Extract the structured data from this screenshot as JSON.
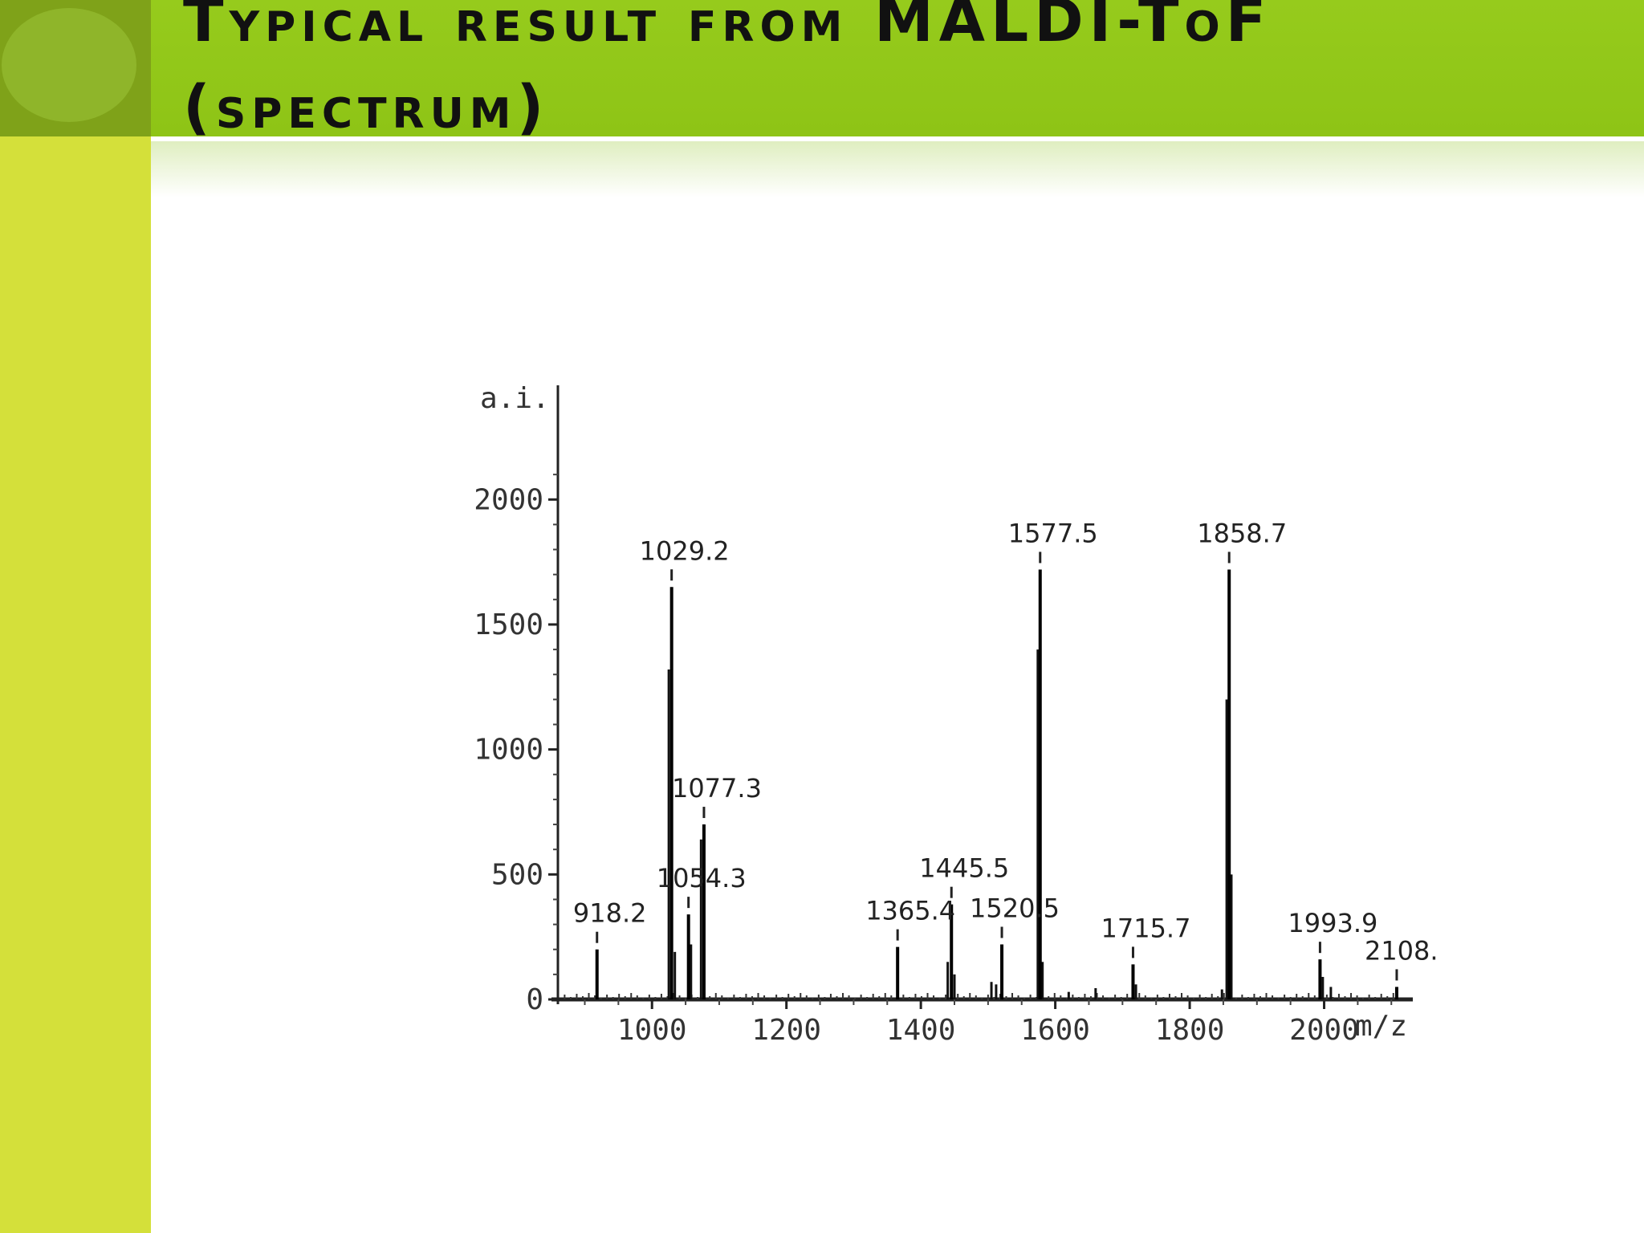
{
  "slide": {
    "title_line1": "Typical result from MALDI-ToF",
    "title_line2": "(spectrum)"
  },
  "colors": {
    "left_bar": "#d4e03a",
    "title_bar": "#92c81a",
    "corner": "#7fa219"
  },
  "chart_data": {
    "type": "bar",
    "title": "",
    "ylabel": "a.i.",
    "xlabel": "m/z",
    "xlim": [
      860,
      2120
    ],
    "ylim": [
      0,
      2200
    ],
    "xticks": [
      1000,
      1200,
      1400,
      1600,
      1800,
      2000
    ],
    "xtick_labels": [
      "1000",
      "1200",
      "1400",
      "1600",
      "1800",
      "2000"
    ],
    "yticks": [
      0,
      500,
      1000,
      1500,
      2000
    ],
    "ytick_labels": [
      "0",
      "500",
      "1000",
      "1500",
      "2000"
    ],
    "grid": false,
    "peaks": [
      {
        "label": "918.2",
        "x": 918.2,
        "y": 200
      },
      {
        "label": "1029.2",
        "x": 1029.2,
        "y": 1650
      },
      {
        "label": "1054.3",
        "x": 1054.3,
        "y": 340
      },
      {
        "label": "1077.3",
        "x": 1077.3,
        "y": 700
      },
      {
        "label": "1365.4",
        "x": 1365.4,
        "y": 210
      },
      {
        "label": "1445.5",
        "x": 1445.5,
        "y": 380
      },
      {
        "label": "1520.5",
        "x": 1520.5,
        "y": 220
      },
      {
        "label": "1577.5",
        "x": 1577.5,
        "y": 1720
      },
      {
        "label": "1715.7",
        "x": 1715.7,
        "y": 140
      },
      {
        "label": "1858.7",
        "x": 1858.7,
        "y": 1720
      },
      {
        "label": "1993.9",
        "x": 1993.9,
        "y": 160
      },
      {
        "label": "2108.0",
        "x": 2108.0,
        "y": 50
      }
    ],
    "minor_peaks": [
      {
        "x": 1025,
        "y": 1320
      },
      {
        "x": 1034,
        "y": 190
      },
      {
        "x": 1058,
        "y": 220
      },
      {
        "x": 1073,
        "y": 640
      },
      {
        "x": 1440,
        "y": 150
      },
      {
        "x": 1450,
        "y": 100
      },
      {
        "x": 1505,
        "y": 70
      },
      {
        "x": 1512,
        "y": 60
      },
      {
        "x": 1574,
        "y": 1400
      },
      {
        "x": 1581,
        "y": 150
      },
      {
        "x": 1620,
        "y": 30
      },
      {
        "x": 1660,
        "y": 45
      },
      {
        "x": 1720,
        "y": 60
      },
      {
        "x": 1855,
        "y": 1200
      },
      {
        "x": 1862,
        "y": 500
      },
      {
        "x": 1848,
        "y": 40
      },
      {
        "x": 1998,
        "y": 90
      },
      {
        "x": 2010,
        "y": 50
      }
    ]
  }
}
